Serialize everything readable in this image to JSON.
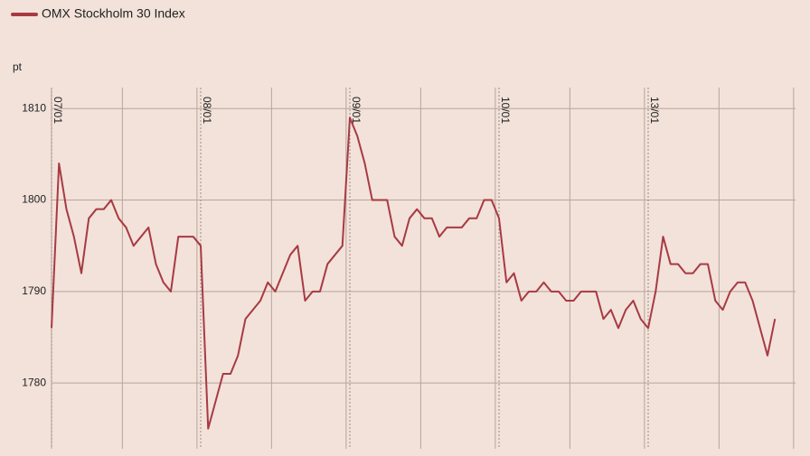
{
  "chart_data": {
    "type": "line",
    "y_label": "pt",
    "categories": [
      "07/01",
      null,
      null,
      null,
      null,
      null,
      null,
      null,
      null,
      null,
      null,
      null,
      null,
      null,
      null,
      null,
      null,
      null,
      null,
      null,
      "08/01",
      null,
      null,
      null,
      null,
      null,
      null,
      null,
      null,
      null,
      null,
      null,
      null,
      null,
      null,
      null,
      null,
      null,
      null,
      null,
      "09/01",
      null,
      null,
      null,
      null,
      null,
      null,
      null,
      null,
      null,
      null,
      null,
      null,
      null,
      null,
      null,
      null,
      null,
      null,
      null,
      "10/01",
      null,
      null,
      null,
      null,
      null,
      null,
      null,
      null,
      null,
      null,
      null,
      null,
      null,
      null,
      null,
      null,
      null,
      null,
      null,
      "13/01",
      null,
      null,
      null,
      null,
      null,
      null,
      null,
      null,
      null,
      null,
      null,
      null,
      null,
      null,
      null,
      null,
      null
    ],
    "series": [
      {
        "name": "OMX Stockholm 30 Index",
        "color": "#a83a43",
        "values": [
          1786,
          1804,
          1799,
          1796,
          1792,
          1798,
          1799,
          1799,
          1800,
          1798,
          1797,
          1795,
          1796,
          1797,
          1793,
          1791,
          1790,
          1796,
          1796,
          1796,
          1795,
          1775,
          1778,
          1781,
          1781,
          1783,
          1787,
          1788,
          1789,
          1791,
          1790,
          1792,
          1794,
          1795,
          1789,
          1790,
          1790,
          1793,
          1794,
          1795,
          1809,
          1807,
          1804,
          1800,
          1800,
          1800,
          1796,
          1795,
          1798,
          1799,
          1798,
          1798,
          1796,
          1797,
          1797,
          1797,
          1798,
          1798,
          1800,
          1800,
          1798,
          1791,
          1792,
          1789,
          1790,
          1790,
          1791,
          1790,
          1790,
          1789,
          1789,
          1790,
          1790,
          1790,
          1787,
          1788,
          1786,
          1788,
          1789,
          1787,
          1786,
          1790,
          1796,
          1793,
          1793,
          1792,
          1792,
          1793,
          1793,
          1789,
          1788,
          1790,
          1791,
          1791,
          1789,
          1786,
          1783,
          1787
        ]
      }
    ],
    "ylim": [
      1772.8,
      1812.3
    ],
    "yticks": [
      1780,
      1790,
      1800,
      1810
    ],
    "grid": true
  }
}
